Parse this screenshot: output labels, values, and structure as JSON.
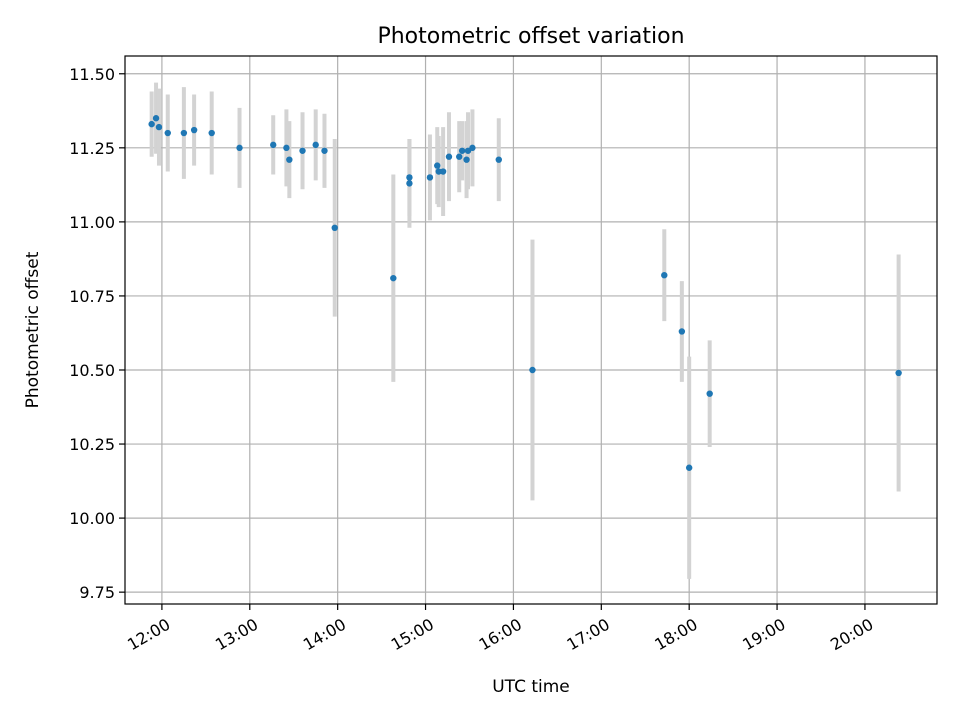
{
  "chart_data": {
    "type": "scatter",
    "title": "Photometric offset variation",
    "xlabel": "UTC time",
    "ylabel": "Photometric offset",
    "xlim_hours": [
      11.58,
      20.82
    ],
    "ylim": [
      9.71,
      11.56
    ],
    "x_ticks": [
      {
        "value": 12,
        "label": "12:00"
      },
      {
        "value": 13,
        "label": "13:00"
      },
      {
        "value": 14,
        "label": "14:00"
      },
      {
        "value": 15,
        "label": "15:00"
      },
      {
        "value": 16,
        "label": "16:00"
      },
      {
        "value": 17,
        "label": "17:00"
      },
      {
        "value": 18,
        "label": "18:00"
      },
      {
        "value": 19,
        "label": "19:00"
      },
      {
        "value": 20,
        "label": "20:00"
      }
    ],
    "y_ticks": [
      {
        "value": 9.75,
        "label": "9.75"
      },
      {
        "value": 10.0,
        "label": "10.00"
      },
      {
        "value": 10.25,
        "label": "10.25"
      },
      {
        "value": 10.5,
        "label": "10.50"
      },
      {
        "value": 10.75,
        "label": "10.75"
      },
      {
        "value": 11.0,
        "label": "11.00"
      },
      {
        "value": 11.25,
        "label": "11.25"
      },
      {
        "value": 11.5,
        "label": "11.50"
      }
    ],
    "grid": true,
    "marker_color": "#1f77b4",
    "errorbar_color": "#d3d3d3",
    "points": [
      {
        "x": "11:53",
        "y": 11.33,
        "err": 0.11
      },
      {
        "x": "11:56",
        "y": 11.35,
        "err": 0.12
      },
      {
        "x": "11:58",
        "y": 11.32,
        "err": 0.13
      },
      {
        "x": "12:04",
        "y": 11.3,
        "err": 0.13
      },
      {
        "x": "12:15",
        "y": 11.3,
        "err": 0.155
      },
      {
        "x": "12:22",
        "y": 11.31,
        "err": 0.12
      },
      {
        "x": "12:34",
        "y": 11.3,
        "err": 0.14
      },
      {
        "x": "12:53",
        "y": 11.25,
        "err": 0.135
      },
      {
        "x": "13:16",
        "y": 11.26,
        "err": 0.1
      },
      {
        "x": "13:25",
        "y": 11.25,
        "err": 0.13
      },
      {
        "x": "13:27",
        "y": 11.21,
        "err": 0.13
      },
      {
        "x": "13:36",
        "y": 11.24,
        "err": 0.13
      },
      {
        "x": "13:45",
        "y": 11.26,
        "err": 0.12
      },
      {
        "x": "13:51",
        "y": 11.24,
        "err": 0.125
      },
      {
        "x": "13:58",
        "y": 10.98,
        "err": 0.3
      },
      {
        "x": "14:38",
        "y": 10.81,
        "err": 0.35
      },
      {
        "x": "14:49",
        "y": 11.13,
        "err": 0.15
      },
      {
        "x": "14:49",
        "y": 11.15,
        "err": 0.13
      },
      {
        "x": "15:03",
        "y": 11.15,
        "err": 0.145
      },
      {
        "x": "15:08",
        "y": 11.19,
        "err": 0.13
      },
      {
        "x": "15:09",
        "y": 11.17,
        "err": 0.12
      },
      {
        "x": "15:12",
        "y": 11.17,
        "err": 0.15
      },
      {
        "x": "15:16",
        "y": 11.22,
        "err": 0.15
      },
      {
        "x": "15:23",
        "y": 11.22,
        "err": 0.12
      },
      {
        "x": "15:25",
        "y": 11.24,
        "err": 0.1
      },
      {
        "x": "15:28",
        "y": 11.21,
        "err": 0.13
      },
      {
        "x": "15:29",
        "y": 11.24,
        "err": 0.13
      },
      {
        "x": "15:32",
        "y": 11.25,
        "err": 0.13
      },
      {
        "x": "15:50",
        "y": 11.21,
        "err": 0.14
      },
      {
        "x": "16:13",
        "y": 10.5,
        "err": 0.44
      },
      {
        "x": "17:43",
        "y": 10.82,
        "err": 0.155
      },
      {
        "x": "17:55",
        "y": 10.63,
        "err": 0.17
      },
      {
        "x": "18:00",
        "y": 10.17,
        "err": 0.375
      },
      {
        "x": "18:14",
        "y": 10.42,
        "err": 0.18
      },
      {
        "x": "20:23",
        "y": 10.49,
        "err": 0.4
      }
    ]
  }
}
